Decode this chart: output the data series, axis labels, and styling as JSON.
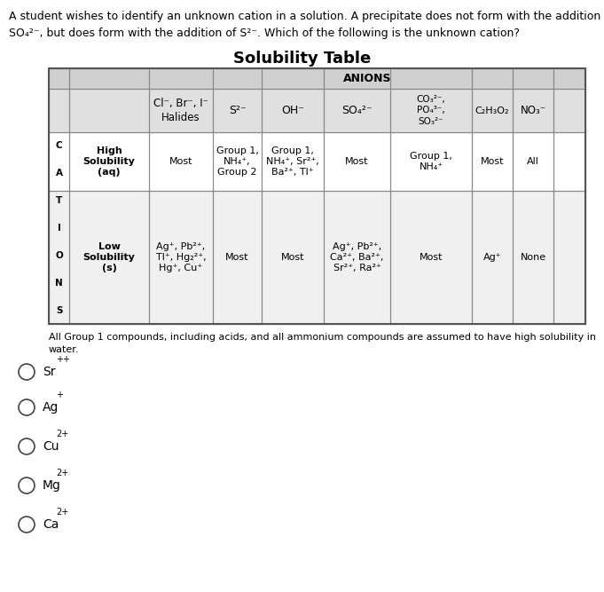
{
  "question_line1": "A student wishes to identify an unknown cation in a solution. A precipitate does not form with the addition of",
  "question_line2": "SO₄²⁻, but does form with the addition of S²⁻. Which of the following is the unknown cation?",
  "table_title": "Solubility Table",
  "anions_label": "ANIONS",
  "cations_letters": [
    "C",
    "A",
    "T",
    "I",
    "O",
    "N",
    "S"
  ],
  "footnote": "All Group 1 compounds, including acids, and all ammonium compounds are assumed to have high solubility in\nwater.",
  "col_headers": [
    "Cl⁻, Br⁻, I⁻\nHalides",
    "S²⁻",
    "OH⁻",
    "SO₄²⁻",
    "CO₃²⁻,\nPO₄³⁻,\nSO₃²⁻",
    "C₂H₃O₂",
    "NO₃⁻"
  ],
  "row_high_label": "High\nSolubility\n(aq)",
  "row_low_label": "Low\nSolubility\n(s)",
  "high_solubility": [
    "Most",
    "Group 1,\nNH₄⁺,\nGroup 2",
    "Group 1,\nNH₄⁺, Sr²⁺,\nBa²⁺, Tl⁺",
    "Most",
    "Group 1,\nNH₄⁺",
    "Most",
    "All"
  ],
  "low_solubility": [
    "Ag⁺, Pb²⁺,\nTl⁺, Hg₂²⁺,\nHg⁺, Cu⁺",
    "Most",
    "Most",
    "Ag⁺, Pb²⁺,\nCa²⁺, Ba²⁺,\nSr²⁺, Ra²⁺",
    "Most",
    "Ag⁺",
    "None"
  ],
  "answer_choices": [
    {
      "elem": "Sr",
      "charge": "++"
    },
    {
      "elem": "Ag",
      "charge": "+"
    },
    {
      "elem": "Cu",
      "charge": "2+"
    },
    {
      "elem": "Mg",
      "charge": "2+"
    },
    {
      "elem": "Ca",
      "charge": "2+"
    }
  ],
  "bg_color": "#ffffff",
  "header_bg": "#d0d0d0",
  "colhead_bg": "#e0e0e0",
  "high_row_bg": "#ffffff",
  "low_row_bg": "#f0f0f0",
  "grid_color": "#888888",
  "border_color": "#555555"
}
